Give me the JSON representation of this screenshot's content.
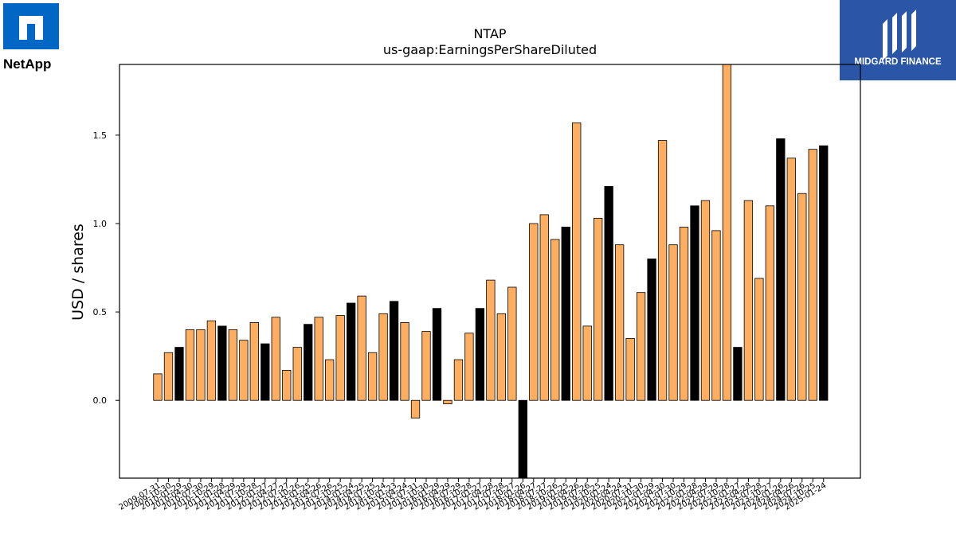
{
  "logos": {
    "left_text": "NetApp",
    "left_color": "#0067C5",
    "right_text": "MIDGARD FINANCE",
    "right_color": "#2B56A8"
  },
  "colors": {
    "bar_default": "#FDAE61",
    "bar_highlight": "#000000",
    "edge": "#000000"
  },
  "chart_data": {
    "type": "bar",
    "title": "NTAP",
    "subtitle": "us-gaap:EarningsPerShareDiluted",
    "xlabel": "",
    "ylabel": "USD / shares",
    "ylim": [
      -0.44,
      1.9
    ],
    "yticks": [
      0.0,
      0.5,
      1.0,
      1.5
    ],
    "grid": false,
    "categories": [
      "2009-07-31",
      "2009-10-30",
      "2010-01-29",
      "2010-04-30",
      "2010-07-30",
      "2010-10-29",
      "2011-01-28",
      "2011-04-29",
      "2011-07-29",
      "2011-10-28",
      "2012-01-27",
      "2012-04-27",
      "2012-07-27",
      "2012-10-26",
      "2013-01-25",
      "2013-04-26",
      "2013-07-26",
      "2013-10-25",
      "2014-01-24",
      "2014-04-25",
      "2014-07-25",
      "2014-10-24",
      "2015-01-23",
      "2015-04-24",
      "2015-07-31",
      "2015-10-30",
      "2016-01-29",
      "2016-04-29",
      "2016-07-29",
      "2016-10-28",
      "2017-01-27",
      "2017-04-28",
      "2017-07-28",
      "2017-10-27",
      "2018-01-26",
      "2018-04-27",
      "2018-07-27",
      "2018-10-26",
      "2019-01-25",
      "2019-04-26",
      "2019-07-26",
      "2019-10-25",
      "2020-01-24",
      "2020-04-24",
      "2020-07-31",
      "2020-10-30",
      "2021-01-29",
      "2021-04-30",
      "2021-07-30",
      "2021-10-29",
      "2022-01-28",
      "2022-04-29",
      "2022-07-29",
      "2022-10-28",
      "2023-01-27",
      "2023-04-28",
      "2023-07-28",
      "2023-10-27",
      "2024-01-26",
      "2024-04-26",
      "2024-07-26",
      "2024-10-25",
      "2025-01-24"
    ],
    "values": [
      0.15,
      0.27,
      0.3,
      0.4,
      0.4,
      0.45,
      0.42,
      0.4,
      0.34,
      0.44,
      0.32,
      0.47,
      0.17,
      0.3,
      0.43,
      0.47,
      0.23,
      0.48,
      0.55,
      0.59,
      0.27,
      0.49,
      0.56,
      0.44,
      -0.1,
      0.39,
      0.52,
      -0.02,
      0.23,
      0.38,
      0.52,
      0.68,
      0.49,
      0.64,
      -0.44,
      1.0,
      1.05,
      0.91,
      0.98,
      1.57,
      0.42,
      1.03,
      1.21,
      0.88,
      0.35,
      0.61,
      0.8,
      1.47,
      0.88,
      0.98,
      1.1,
      1.13,
      0.96,
      1.9,
      0.3,
      1.13,
      0.69,
      1.1,
      1.48,
      1.37,
      1.17,
      1.42,
      1.44
    ],
    "highlight": [
      false,
      false,
      true,
      false,
      false,
      false,
      true,
      false,
      false,
      false,
      true,
      false,
      false,
      false,
      true,
      false,
      false,
      false,
      true,
      false,
      false,
      false,
      true,
      false,
      false,
      false,
      true,
      false,
      false,
      false,
      true,
      false,
      false,
      false,
      true,
      false,
      false,
      false,
      true,
      false,
      false,
      false,
      true,
      false,
      false,
      false,
      true,
      false,
      false,
      false,
      true,
      false,
      false,
      false,
      true,
      false,
      false,
      false,
      true,
      false,
      false,
      false,
      true
    ]
  }
}
